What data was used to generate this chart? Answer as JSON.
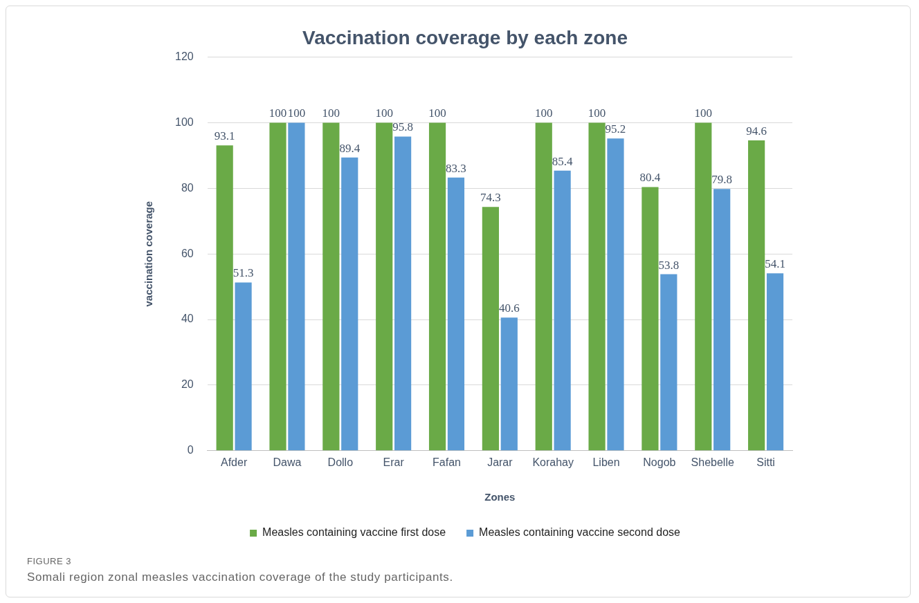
{
  "chart_data": {
    "type": "bar",
    "title": "Vaccination coverage by each zone",
    "xlabel": "Zones",
    "ylabel": "vaccination coverage",
    "categories": [
      "Afder",
      "Dawa",
      "Dollo",
      "Erar",
      "Fafan",
      "Jarar",
      "Korahay",
      "Liben",
      "Nogob",
      "Shebelle",
      "Sitti"
    ],
    "series": [
      {
        "name": "Measles containing vaccine first dose",
        "color": "#6aaa47",
        "values": [
          93.1,
          100,
          100,
          100,
          100,
          74.3,
          100,
          100,
          80.4,
          100,
          94.6
        ]
      },
      {
        "name": "Measles containing vaccine second dose",
        "color": "#5b9bd5",
        "values": [
          51.3,
          100,
          89.4,
          95.8,
          83.3,
          40.6,
          85.4,
          95.2,
          53.8,
          79.8,
          54.1
        ]
      }
    ],
    "ylim": [
      0,
      120
    ],
    "yticks": [
      0,
      20,
      40,
      60,
      80,
      100,
      120
    ],
    "grid": "y",
    "legend": "bottom",
    "data_labels": true,
    "annotations": [
      "FIGURE 3",
      "Somali region zonal measles vaccination coverage of the study participants."
    ]
  }
}
